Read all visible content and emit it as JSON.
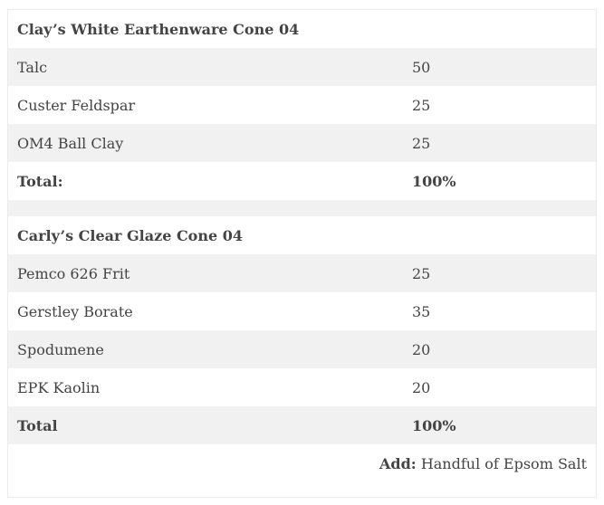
{
  "tables": [
    {
      "title": "Clay’s White Earthenware Cone 04",
      "rows": [
        {
          "name": "Talc",
          "value": "50"
        },
        {
          "name": "Custer Feldspar",
          "value": "25"
        },
        {
          "name": "OM4 Ball Clay",
          "value": "25"
        }
      ],
      "total": {
        "label": "Total:",
        "value": "100%"
      }
    },
    {
      "title": "Carly’s Clear Glaze Cone 04",
      "rows": [
        {
          "name": "Pemco 626 Frit",
          "value": "25"
        },
        {
          "name": "Gerstley Borate",
          "value": "35"
        },
        {
          "name": "Spodumene",
          "value": "20"
        },
        {
          "name": "EPK Kaolin",
          "value": "20"
        }
      ],
      "total": {
        "label": "Total",
        "value": "100%"
      }
    }
  ],
  "note": {
    "label": "Add:",
    "text": "Handful of Epsom Salt"
  }
}
